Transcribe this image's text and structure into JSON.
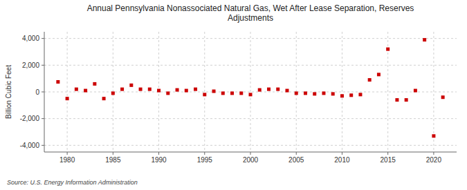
{
  "chart_data": {
    "type": "scatter",
    "title": "Annual Pennsylvania Nonassociated Natural Gas, Wet After Lease Separation, Reserves\nAdjustments",
    "y_label": "Billion Cubic Feet",
    "source": "Source: U.S. Energy Information Administration",
    "color": "#cc0000",
    "marker": "square",
    "grid": true,
    "xlim": [
      1977.5,
      2022.5
    ],
    "xticks": [
      1980,
      1985,
      1990,
      1995,
      2000,
      2005,
      2010,
      2015,
      2020
    ],
    "ylim": [
      -4500,
      4500
    ],
    "yticks": [
      {
        "value": -4000,
        "label": "-4,000"
      },
      {
        "value": -2000,
        "label": "-2,000"
      },
      0,
      {
        "value": 2000,
        "label": "2,000"
      },
      {
        "value": 4000,
        "label": "4,000"
      }
    ],
    "x": [
      1979,
      1980,
      1981,
      1982,
      1983,
      1984,
      1985,
      1986,
      1987,
      1988,
      1989,
      1990,
      1991,
      1992,
      1993,
      1994,
      1995,
      1996,
      1997,
      1998,
      1999,
      2000,
      2001,
      2002,
      2003,
      2004,
      2005,
      2006,
      2007,
      2008,
      2009,
      2010,
      2011,
      2012,
      2013,
      2014,
      2015,
      2016,
      2017,
      2018,
      2019,
      2020,
      2021
    ],
    "values": [
      750,
      -500,
      200,
      100,
      600,
      -500,
      -100,
      200,
      500,
      200,
      200,
      100,
      -100,
      150,
      100,
      200,
      -200,
      50,
      -100,
      -100,
      -100,
      -200,
      150,
      200,
      200,
      100,
      -100,
      -100,
      -150,
      -100,
      -150,
      -300,
      -250,
      -200,
      900,
      1300,
      3200,
      -600,
      -600,
      100,
      3900,
      -3300,
      -400
    ]
  }
}
